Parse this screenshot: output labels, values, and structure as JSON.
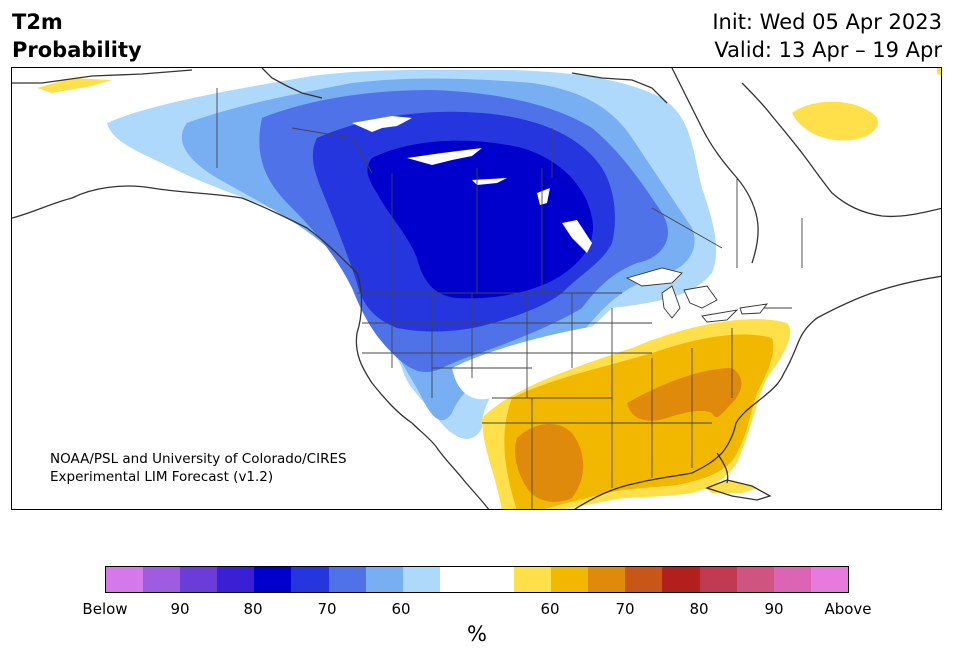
{
  "title": {
    "line1": "T2m",
    "line2": "Probability",
    "init": "Init: Wed 05 Apr 2023",
    "valid": "Valid: 13 Apr – 19 Apr"
  },
  "credit": {
    "line1": "NOAA/PSL and University of Colorado/CIRES",
    "line2": "Experimental LIM Forecast (v1.2)"
  },
  "colorbar": {
    "colors": [
      "#d478ea",
      "#a05ce0",
      "#6c3cd8",
      "#3a1fd4",
      "#0000cd",
      "#2536de",
      "#4f72e8",
      "#78aef2",
      "#aed9fb",
      "#ffffff",
      "#ffffff",
      "#ffe04a",
      "#f2b800",
      "#e08a0c",
      "#c85618",
      "#b2201e",
      "#c23a52",
      "#d05480",
      "#dc64b4",
      "#e87ade"
    ],
    "labels": [
      "Below",
      "90",
      "80",
      "70",
      "60",
      "60",
      "70",
      "80",
      "90",
      "Above"
    ],
    "unit": "%"
  },
  "map": {
    "colors": {
      "blue_light": "#aed9fb",
      "blue_mid": "#78aef2",
      "blue_med": "#4f72e8",
      "blue_dark": "#2536de",
      "blue_deep": "#0000cd",
      "yellow": "#ffe04a",
      "gold": "#f2b800",
      "orange": "#e08a0c",
      "land_line": "#333333"
    }
  }
}
